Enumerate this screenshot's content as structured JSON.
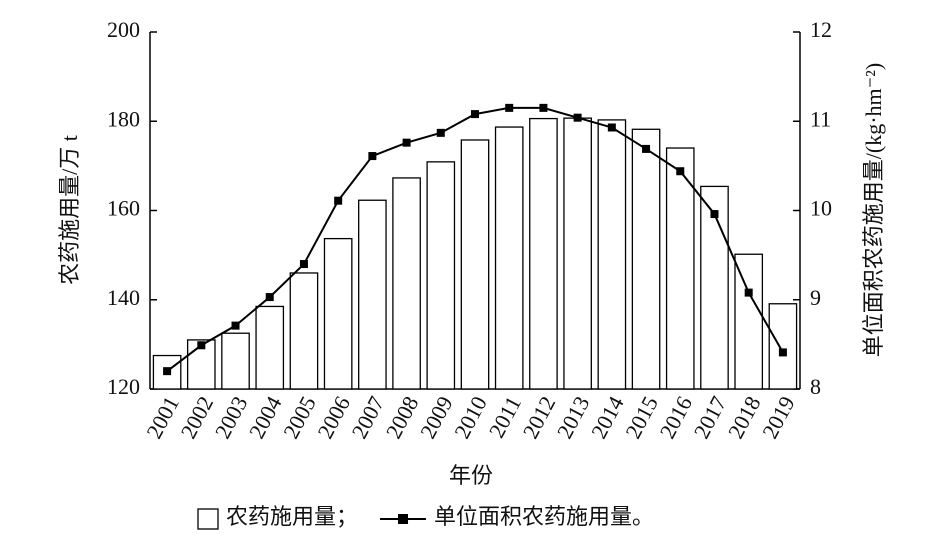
{
  "chart_data": {
    "type": "bar+line",
    "x_label": "年份",
    "y_label": "农药施用量/万 t",
    "y2_label": "单位面积农药施用量/(kg·hm⁻²)",
    "categories": [
      "2001",
      "2002",
      "2003",
      "2004",
      "2005",
      "2006",
      "2007",
      "2008",
      "2009",
      "2010",
      "2011",
      "2012",
      "2013",
      "2014",
      "2015",
      "2016",
      "2017",
      "2018",
      "2019"
    ],
    "series": [
      {
        "name": "农药施用量；",
        "type": "bar",
        "color": "#ffffff",
        "values": [
          127.5,
          131,
          132.5,
          138.5,
          146,
          153.7,
          162.3,
          167.3,
          170.9,
          175.8,
          178.7,
          180.6,
          180.7,
          180.3,
          178.2,
          174,
          165.4,
          150.2,
          139.1
        ]
      },
      {
        "name": "单位面积农药施用量。",
        "type": "line",
        "axis": "y2",
        "color": "#000000",
        "values": [
          8.2,
          8.49,
          8.71,
          9.03,
          9.4,
          10.11,
          10.61,
          10.76,
          10.87,
          11.08,
          11.15,
          11.15,
          11.04,
          10.93,
          10.69,
          10.44,
          9.96,
          9.08,
          8.41
        ]
      }
    ],
    "ylim": [
      120,
      200
    ],
    "yticks": [
      120,
      140,
      160,
      180,
      200
    ],
    "y2lim": [
      8,
      12
    ],
    "y2ticks": [
      8,
      9,
      10,
      11,
      12
    ]
  }
}
